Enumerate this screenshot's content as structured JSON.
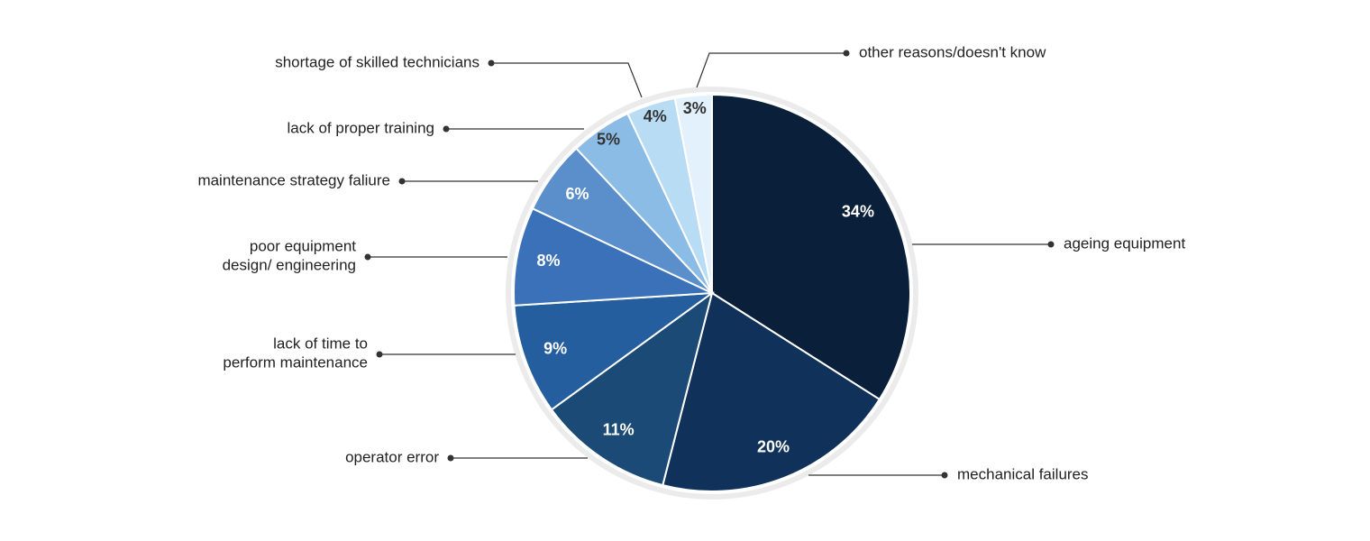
{
  "chart_data": {
    "type": "pie",
    "categories": [
      "ageing equipment",
      "mechanical failures",
      "operator error",
      "lack of time to\nperform maintenance",
      "poor equipment\ndesign/ engineering",
      "maintenance strategy faliure",
      "lack of proper training",
      "shortage of skilled technicians",
      "other reasons/doesn't know"
    ],
    "values": [
      34,
      20,
      11,
      9,
      8,
      6,
      5,
      4,
      3
    ],
    "value_labels": [
      "34%",
      "20%",
      "11%",
      "9%",
      "8%",
      "6%",
      "5%",
      "4%",
      "3%"
    ],
    "colors": [
      "#0a1f3a",
      "#10325a",
      "#1b4a76",
      "#245e9e",
      "#3b71b9",
      "#5b8fcc",
      "#8bbce6",
      "#b9dcf5",
      "#e3f1fc"
    ]
  }
}
